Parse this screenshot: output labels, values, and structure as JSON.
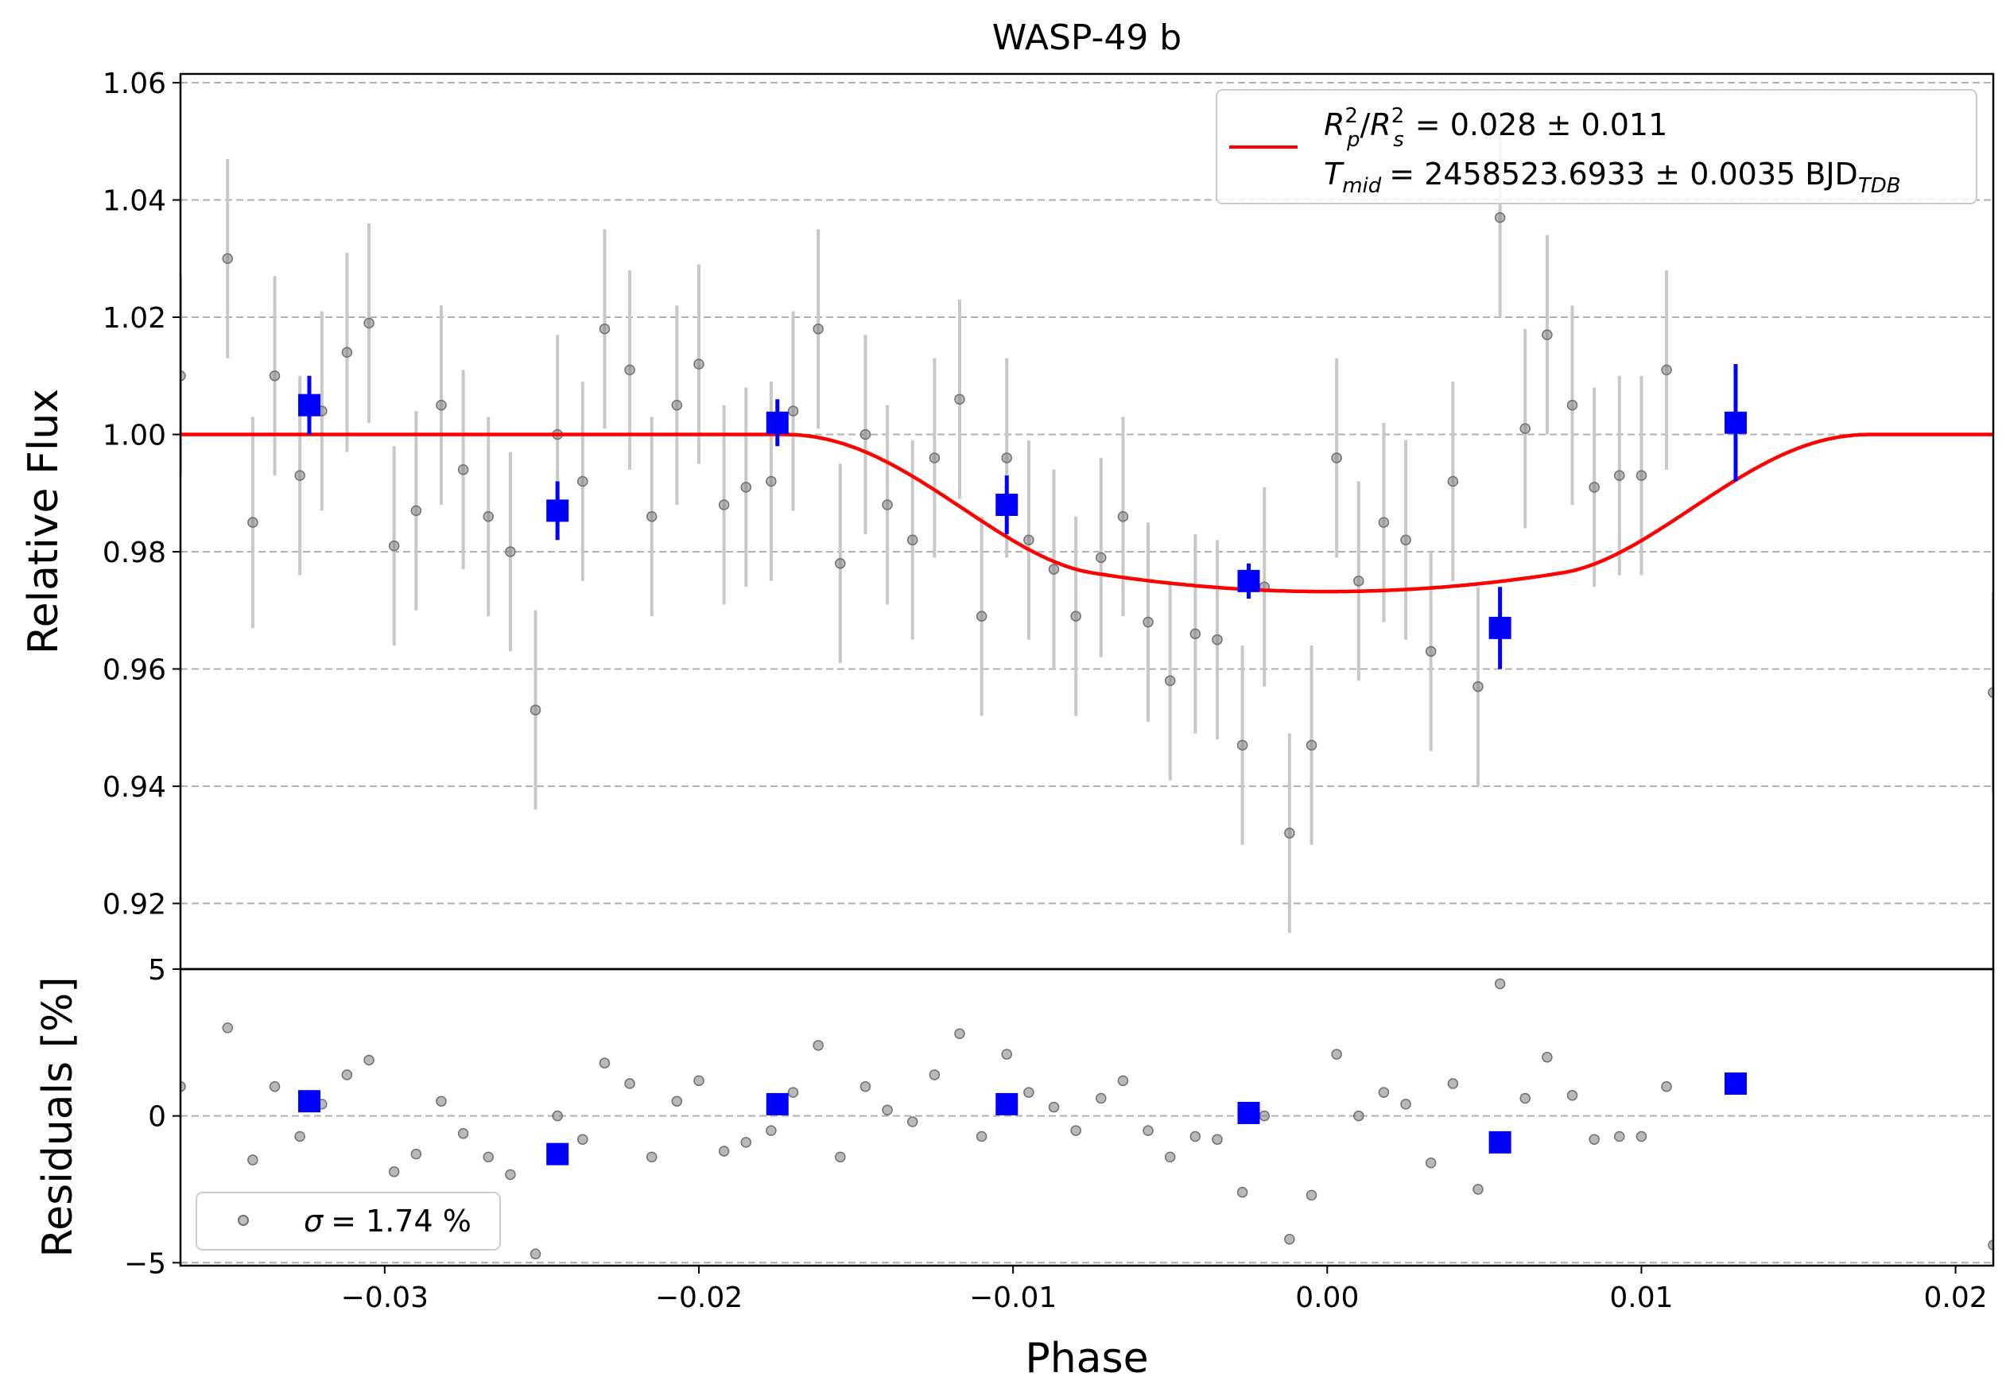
{
  "chart_data": {
    "type": "scatter",
    "title": "WASP-49 b",
    "xlabel": "Phase",
    "xlim": [
      -0.0365,
      0.0212
    ],
    "xticks": [
      "−0.03",
      "−0.02",
      "−0.01",
      "0.00",
      "0.01",
      "0.02"
    ],
    "xtick_values": [
      -0.03,
      -0.02,
      -0.01,
      0.0,
      0.01,
      0.02
    ],
    "grid": "horizontal dashed",
    "colors": {
      "model": "#ff0000",
      "binned": "#0000ff",
      "raw": "#808080",
      "errorbar": "#c8c8c8",
      "grid": "#b0b0b0"
    },
    "flux_panel": {
      "ylabel": "Relative Flux",
      "ylim": [
        0.9088,
        1.0615
      ],
      "yticks": [
        "0.92",
        "0.94",
        "0.96",
        "0.98",
        "1.00",
        "1.02",
        "1.04",
        "1.06"
      ],
      "ytick_values": [
        0.92,
        0.94,
        0.96,
        0.98,
        1.0,
        1.02,
        1.04,
        1.06
      ],
      "legend": {
        "placement": "upper right",
        "line1_ratio_lhs": "R",
        "line1_sub_p": "p",
        "line1_sup_p": "2",
        "line1_sub_s": "s",
        "line1_sup_s": "2",
        "line1_rhs": "= 0.028 ± 0.011",
        "line2_lhs": "T",
        "line2_sub": "mid",
        "line2_rhs": "= 2458523.6933 ± 0.0035 BJD",
        "line2_unit_sub": "TDB"
      },
      "model": {
        "baseline": 1.0,
        "depth_min": 0.9732,
        "ingress_start": -0.0173,
        "ingress_end": -0.0075,
        "egress_start": 0.0075,
        "egress_end": 0.0173
      },
      "raw_points": [
        [
          -0.0365,
          1.01,
          0.017
        ],
        [
          -0.035,
          1.03,
          0.017
        ],
        [
          -0.0342,
          0.985,
          0.018
        ],
        [
          -0.0335,
          1.01,
          0.017
        ],
        [
          -0.0327,
          0.993,
          0.017
        ],
        [
          -0.032,
          1.004,
          0.017
        ],
        [
          -0.0312,
          1.014,
          0.017
        ],
        [
          -0.0305,
          1.019,
          0.017
        ],
        [
          -0.0297,
          0.981,
          0.017
        ],
        [
          -0.029,
          0.987,
          0.017
        ],
        [
          -0.0282,
          1.005,
          0.017
        ],
        [
          -0.0275,
          0.994,
          0.017
        ],
        [
          -0.0267,
          0.986,
          0.017
        ],
        [
          -0.026,
          0.98,
          0.017
        ],
        [
          -0.0252,
          0.953,
          0.017
        ],
        [
          -0.0245,
          1.0,
          0.017
        ],
        [
          -0.0237,
          0.992,
          0.017
        ],
        [
          -0.023,
          1.018,
          0.017
        ],
        [
          -0.0222,
          1.011,
          0.017
        ],
        [
          -0.0215,
          0.986,
          0.017
        ],
        [
          -0.0207,
          1.005,
          0.017
        ],
        [
          -0.02,
          1.012,
          0.017
        ],
        [
          -0.0192,
          0.988,
          0.017
        ],
        [
          -0.0185,
          0.991,
          0.017
        ],
        [
          -0.0177,
          0.992,
          0.017
        ],
        [
          -0.017,
          1.004,
          0.017
        ],
        [
          -0.0162,
          1.018,
          0.017
        ],
        [
          -0.0155,
          0.978,
          0.017
        ],
        [
          -0.0147,
          1.0,
          0.017
        ],
        [
          -0.014,
          0.988,
          0.017
        ],
        [
          -0.0132,
          0.982,
          0.017
        ],
        [
          -0.0125,
          0.996,
          0.017
        ],
        [
          -0.0117,
          1.006,
          0.017
        ],
        [
          -0.011,
          0.969,
          0.017
        ],
        [
          -0.0102,
          0.996,
          0.017
        ],
        [
          -0.0095,
          0.982,
          0.017
        ],
        [
          -0.0087,
          0.977,
          0.017
        ],
        [
          -0.008,
          0.969,
          0.017
        ],
        [
          -0.0072,
          0.979,
          0.017
        ],
        [
          -0.0065,
          0.986,
          0.017
        ],
        [
          -0.0057,
          0.968,
          0.017
        ],
        [
          -0.005,
          0.958,
          0.017
        ],
        [
          -0.0042,
          0.966,
          0.017
        ],
        [
          -0.0035,
          0.965,
          0.017
        ],
        [
          -0.0027,
          0.947,
          0.017
        ],
        [
          -0.002,
          0.974,
          0.017
        ],
        [
          -0.0012,
          0.932,
          0.017
        ],
        [
          -0.0005,
          0.947,
          0.017
        ],
        [
          0.0003,
          0.996,
          0.017
        ],
        [
          0.001,
          0.975,
          0.017
        ],
        [
          0.0018,
          0.985,
          0.017
        ],
        [
          0.0025,
          0.982,
          0.017
        ],
        [
          0.0033,
          0.963,
          0.017
        ],
        [
          0.004,
          0.992,
          0.017
        ],
        [
          0.0048,
          0.957,
          0.017
        ],
        [
          0.0055,
          1.037,
          0.017
        ],
        [
          0.0063,
          1.001,
          0.017
        ],
        [
          0.007,
          1.017,
          0.017
        ],
        [
          0.0078,
          1.005,
          0.017
        ],
        [
          0.0085,
          0.991,
          0.017
        ],
        [
          0.0093,
          0.993,
          0.017
        ],
        [
          0.01,
          0.993,
          0.017
        ],
        [
          0.0108,
          1.011,
          0.017
        ],
        [
          0.0212,
          0.956,
          0.017
        ]
      ],
      "binned_points": [
        [
          -0.0324,
          1.005,
          0.005
        ],
        [
          -0.0245,
          0.987,
          0.005
        ],
        [
          -0.0175,
          1.002,
          0.004
        ],
        [
          -0.0102,
          0.988,
          0.005
        ],
        [
          -0.0025,
          0.975,
          0.003
        ],
        [
          0.0055,
          0.967,
          0.007
        ],
        [
          0.013,
          1.002,
          0.01
        ]
      ]
    },
    "residual_panel": {
      "ylabel": "Residuals [%]",
      "ylim": [
        -5.1,
        5.0
      ],
      "yticks": [
        "−5",
        "0",
        "5"
      ],
      "ytick_values": [
        -5,
        0,
        5
      ],
      "legend": {
        "placement": "lower left",
        "label_symbol": "σ",
        "label_rhs": "= 1.74 %"
      },
      "raw_points": [
        [
          -0.0365,
          1.0
        ],
        [
          -0.035,
          3.0
        ],
        [
          -0.0342,
          -1.5
        ],
        [
          -0.0335,
          1.0
        ],
        [
          -0.0327,
          -0.7
        ],
        [
          -0.032,
          0.4
        ],
        [
          -0.0312,
          1.4
        ],
        [
          -0.0305,
          1.9
        ],
        [
          -0.0297,
          -1.9
        ],
        [
          -0.029,
          -1.3
        ],
        [
          -0.0282,
          0.5
        ],
        [
          -0.0275,
          -0.6
        ],
        [
          -0.0267,
          -1.4
        ],
        [
          -0.026,
          -2.0
        ],
        [
          -0.0252,
          -4.7
        ],
        [
          -0.0245,
          0.0
        ],
        [
          -0.0237,
          -0.8
        ],
        [
          -0.023,
          1.8
        ],
        [
          -0.0222,
          1.1
        ],
        [
          -0.0215,
          -1.4
        ],
        [
          -0.0207,
          0.5
        ],
        [
          -0.02,
          1.2
        ],
        [
          -0.0192,
          -1.2
        ],
        [
          -0.0185,
          -0.9
        ],
        [
          -0.0177,
          -0.5
        ],
        [
          -0.017,
          0.8
        ],
        [
          -0.0162,
          2.4
        ],
        [
          -0.0155,
          -1.4
        ],
        [
          -0.0147,
          1.0
        ],
        [
          -0.014,
          0.2
        ],
        [
          -0.0132,
          -0.2
        ],
        [
          -0.0125,
          1.4
        ],
        [
          -0.0117,
          2.8
        ],
        [
          -0.011,
          -0.7
        ],
        [
          -0.0102,
          2.1
        ],
        [
          -0.0095,
          0.8
        ],
        [
          -0.0087,
          0.3
        ],
        [
          -0.008,
          -0.5
        ],
        [
          -0.0072,
          0.6
        ],
        [
          -0.0065,
          1.2
        ],
        [
          -0.0057,
          -0.5
        ],
        [
          -0.005,
          -1.4
        ],
        [
          -0.0042,
          -0.7
        ],
        [
          -0.0035,
          -0.8
        ],
        [
          -0.0027,
          -2.6
        ],
        [
          -0.002,
          0.0
        ],
        [
          -0.0012,
          -4.2
        ],
        [
          -0.0005,
          -2.7
        ],
        [
          0.0003,
          2.1
        ],
        [
          0.001,
          0.0
        ],
        [
          0.0018,
          0.8
        ],
        [
          0.0025,
          0.4
        ],
        [
          0.0033,
          -1.6
        ],
        [
          0.004,
          1.1
        ],
        [
          0.0048,
          -2.5
        ],
        [
          0.0055,
          4.5
        ],
        [
          0.0063,
          0.6
        ],
        [
          0.007,
          2.0
        ],
        [
          0.0078,
          0.7
        ],
        [
          0.0085,
          -0.8
        ],
        [
          0.0093,
          -0.7
        ],
        [
          0.01,
          -0.7
        ],
        [
          0.0108,
          1.0
        ],
        [
          0.0212,
          -4.4
        ]
      ],
      "binned_points": [
        [
          -0.0324,
          0.5
        ],
        [
          -0.0245,
          -1.3
        ],
        [
          -0.0175,
          0.4
        ],
        [
          -0.0102,
          0.4
        ],
        [
          -0.0025,
          0.1
        ],
        [
          0.0055,
          -0.9
        ],
        [
          0.013,
          1.1
        ]
      ]
    }
  }
}
